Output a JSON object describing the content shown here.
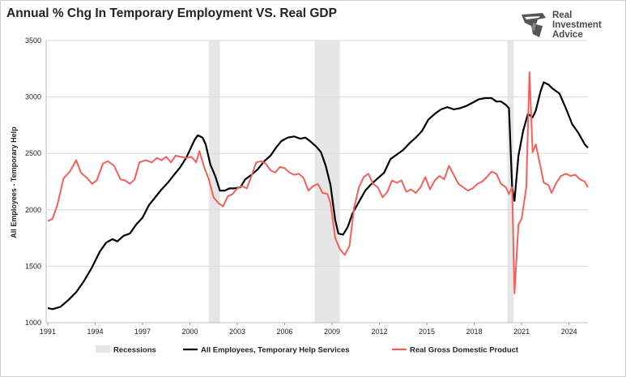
{
  "header": {
    "title": "Annual % Chg In Temporary Employment VS. Real GDP"
  },
  "logo": {
    "line1": "Real",
    "line2": "Investment",
    "line3": "Advice",
    "icon": "helmet-logo-icon"
  },
  "colors": {
    "temp_help": "#000000",
    "gdp": "#f2605a",
    "recession": "#e6e6e6"
  },
  "chart_data": {
    "type": "line",
    "title": "Annual % Chg In Temporary Employment VS. Real GDP",
    "ylabel": "All Employees - Temporary Help",
    "ylim": [
      1000,
      3500
    ],
    "yticks": [
      1000,
      1500,
      2000,
      2500,
      3000,
      3500
    ],
    "xlim": [
      1990.9,
      2025.2
    ],
    "xticks": [
      1991,
      1994,
      1997,
      2000,
      2003,
      2006,
      2009,
      2012,
      2015,
      2018,
      2021,
      2024
    ],
    "grid": true,
    "legend_position": "bottom",
    "recessions": [
      [
        2001.2,
        2001.9
      ],
      [
        2007.9,
        2009.5
      ],
      [
        2020.1,
        2020.5
      ]
    ],
    "legend": [
      "Recessions",
      "All Employees, Temporary Help Services",
      "Real Gross Domestic Product"
    ],
    "series": [
      {
        "name": "All Employees, Temporary Help Services",
        "points": [
          [
            1991.0,
            1130
          ],
          [
            1991.3,
            1120
          ],
          [
            1991.8,
            1140
          ],
          [
            1992.3,
            1200
          ],
          [
            1992.8,
            1270
          ],
          [
            1993.3,
            1370
          ],
          [
            1993.8,
            1490
          ],
          [
            1994.3,
            1630
          ],
          [
            1994.7,
            1710
          ],
          [
            1995.1,
            1740
          ],
          [
            1995.4,
            1720
          ],
          [
            1995.8,
            1770
          ],
          [
            1996.2,
            1790
          ],
          [
            1996.6,
            1870
          ],
          [
            1997.0,
            1930
          ],
          [
            1997.4,
            2040
          ],
          [
            1997.8,
            2110
          ],
          [
            1998.2,
            2180
          ],
          [
            1998.6,
            2240
          ],
          [
            1999.0,
            2310
          ],
          [
            1999.4,
            2380
          ],
          [
            1999.8,
            2470
          ],
          [
            2000.1,
            2560
          ],
          [
            2000.3,
            2620
          ],
          [
            2000.5,
            2660
          ],
          [
            2000.8,
            2640
          ],
          [
            2001.0,
            2580
          ],
          [
            2001.3,
            2400
          ],
          [
            2001.6,
            2300
          ],
          [
            2001.9,
            2170
          ],
          [
            2002.2,
            2170
          ],
          [
            2002.5,
            2190
          ],
          [
            2002.8,
            2190
          ],
          [
            2003.2,
            2200
          ],
          [
            2003.5,
            2270
          ],
          [
            2003.9,
            2310
          ],
          [
            2004.3,
            2360
          ],
          [
            2004.7,
            2430
          ],
          [
            2005.1,
            2480
          ],
          [
            2005.5,
            2560
          ],
          [
            2005.8,
            2610
          ],
          [
            2006.2,
            2640
          ],
          [
            2006.6,
            2650
          ],
          [
            2007.0,
            2630
          ],
          [
            2007.3,
            2640
          ],
          [
            2007.6,
            2610
          ],
          [
            2008.0,
            2560
          ],
          [
            2008.3,
            2510
          ],
          [
            2008.6,
            2390
          ],
          [
            2008.9,
            2220
          ],
          [
            2009.2,
            1910
          ],
          [
            2009.4,
            1790
          ],
          [
            2009.7,
            1780
          ],
          [
            2010.0,
            1850
          ],
          [
            2010.3,
            1970
          ],
          [
            2010.7,
            2070
          ],
          [
            2011.1,
            2170
          ],
          [
            2011.5,
            2230
          ],
          [
            2011.9,
            2280
          ],
          [
            2012.3,
            2330
          ],
          [
            2012.7,
            2450
          ],
          [
            2013.1,
            2490
          ],
          [
            2013.5,
            2530
          ],
          [
            2013.9,
            2590
          ],
          [
            2014.3,
            2640
          ],
          [
            2014.7,
            2700
          ],
          [
            2015.1,
            2800
          ],
          [
            2015.5,
            2850
          ],
          [
            2015.9,
            2890
          ],
          [
            2016.3,
            2910
          ],
          [
            2016.7,
            2890
          ],
          [
            2017.1,
            2900
          ],
          [
            2017.5,
            2920
          ],
          [
            2017.9,
            2950
          ],
          [
            2018.3,
            2980
          ],
          [
            2018.7,
            2990
          ],
          [
            2019.1,
            2990
          ],
          [
            2019.4,
            2960
          ],
          [
            2019.7,
            2960
          ],
          [
            2020.0,
            2930
          ],
          [
            2020.2,
            2900
          ],
          [
            2020.4,
            2200
          ],
          [
            2020.55,
            2080
          ],
          [
            2020.8,
            2480
          ],
          [
            2021.1,
            2700
          ],
          [
            2021.4,
            2850
          ],
          [
            2021.7,
            2820
          ],
          [
            2021.9,
            2880
          ],
          [
            2022.2,
            3050
          ],
          [
            2022.4,
            3130
          ],
          [
            2022.7,
            3110
          ],
          [
            2023.0,
            3070
          ],
          [
            2023.4,
            3030
          ],
          [
            2023.8,
            2900
          ],
          [
            2024.2,
            2760
          ],
          [
            2024.6,
            2680
          ],
          [
            2025.0,
            2580
          ],
          [
            2025.2,
            2550
          ]
        ]
      },
      {
        "name": "Real Gross Domestic Product",
        "points": [
          [
            1991.0,
            1900
          ],
          [
            1991.3,
            1920
          ],
          [
            1991.6,
            2040
          ],
          [
            1992.0,
            2280
          ],
          [
            1992.4,
            2340
          ],
          [
            1992.8,
            2440
          ],
          [
            1993.1,
            2330
          ],
          [
            1993.5,
            2280
          ],
          [
            1993.8,
            2230
          ],
          [
            1994.1,
            2260
          ],
          [
            1994.5,
            2410
          ],
          [
            1994.8,
            2430
          ],
          [
            1995.2,
            2390
          ],
          [
            1995.6,
            2270
          ],
          [
            1995.9,
            2260
          ],
          [
            1996.2,
            2230
          ],
          [
            1996.5,
            2270
          ],
          [
            1996.8,
            2420
          ],
          [
            1997.2,
            2440
          ],
          [
            1997.6,
            2420
          ],
          [
            1997.9,
            2460
          ],
          [
            1998.2,
            2440
          ],
          [
            1998.5,
            2470
          ],
          [
            1998.8,
            2420
          ],
          [
            1999.1,
            2480
          ],
          [
            1999.4,
            2470
          ],
          [
            1999.8,
            2460
          ],
          [
            2000.1,
            2470
          ],
          [
            2000.4,
            2420
          ],
          [
            2000.6,
            2520
          ],
          [
            2000.9,
            2380
          ],
          [
            2001.2,
            2270
          ],
          [
            2001.5,
            2110
          ],
          [
            2001.8,
            2060
          ],
          [
            2002.1,
            2030
          ],
          [
            2002.4,
            2120
          ],
          [
            2002.7,
            2140
          ],
          [
            2003.0,
            2190
          ],
          [
            2003.3,
            2210
          ],
          [
            2003.6,
            2190
          ],
          [
            2003.9,
            2300
          ],
          [
            2004.2,
            2420
          ],
          [
            2004.5,
            2430
          ],
          [
            2004.8,
            2410
          ],
          [
            2005.1,
            2350
          ],
          [
            2005.4,
            2330
          ],
          [
            2005.7,
            2380
          ],
          [
            2006.0,
            2370
          ],
          [
            2006.3,
            2330
          ],
          [
            2006.6,
            2310
          ],
          [
            2006.9,
            2320
          ],
          [
            2007.2,
            2280
          ],
          [
            2007.5,
            2170
          ],
          [
            2007.8,
            2210
          ],
          [
            2008.1,
            2230
          ],
          [
            2008.4,
            2150
          ],
          [
            2008.7,
            2140
          ],
          [
            2008.9,
            2060
          ],
          [
            2009.2,
            1750
          ],
          [
            2009.5,
            1650
          ],
          [
            2009.8,
            1600
          ],
          [
            2010.1,
            1680
          ],
          [
            2010.4,
            2020
          ],
          [
            2010.7,
            2200
          ],
          [
            2011.0,
            2290
          ],
          [
            2011.3,
            2320
          ],
          [
            2011.6,
            2230
          ],
          [
            2011.9,
            2200
          ],
          [
            2012.2,
            2110
          ],
          [
            2012.5,
            2160
          ],
          [
            2012.8,
            2260
          ],
          [
            2013.1,
            2240
          ],
          [
            2013.4,
            2260
          ],
          [
            2013.7,
            2160
          ],
          [
            2014.0,
            2180
          ],
          [
            2014.3,
            2150
          ],
          [
            2014.6,
            2200
          ],
          [
            2014.9,
            2290
          ],
          [
            2015.2,
            2180
          ],
          [
            2015.5,
            2260
          ],
          [
            2015.8,
            2300
          ],
          [
            2016.1,
            2270
          ],
          [
            2016.4,
            2390
          ],
          [
            2016.7,
            2310
          ],
          [
            2017.0,
            2230
          ],
          [
            2017.3,
            2200
          ],
          [
            2017.6,
            2170
          ],
          [
            2017.9,
            2190
          ],
          [
            2018.2,
            2230
          ],
          [
            2018.5,
            2250
          ],
          [
            2018.8,
            2290
          ],
          [
            2019.1,
            2340
          ],
          [
            2019.4,
            2320
          ],
          [
            2019.7,
            2230
          ],
          [
            2020.0,
            2200
          ],
          [
            2020.2,
            2140
          ],
          [
            2020.4,
            2200
          ],
          [
            2020.55,
            1260
          ],
          [
            2020.8,
            1870
          ],
          [
            2021.0,
            1920
          ],
          [
            2021.3,
            2200
          ],
          [
            2021.5,
            3220
          ],
          [
            2021.7,
            2510
          ],
          [
            2021.9,
            2580
          ],
          [
            2022.2,
            2380
          ],
          [
            2022.4,
            2240
          ],
          [
            2022.7,
            2220
          ],
          [
            2022.9,
            2150
          ],
          [
            2023.2,
            2240
          ],
          [
            2023.5,
            2300
          ],
          [
            2023.8,
            2320
          ],
          [
            2024.1,
            2300
          ],
          [
            2024.4,
            2310
          ],
          [
            2024.7,
            2270
          ],
          [
            2025.0,
            2250
          ],
          [
            2025.2,
            2200
          ]
        ]
      }
    ]
  }
}
